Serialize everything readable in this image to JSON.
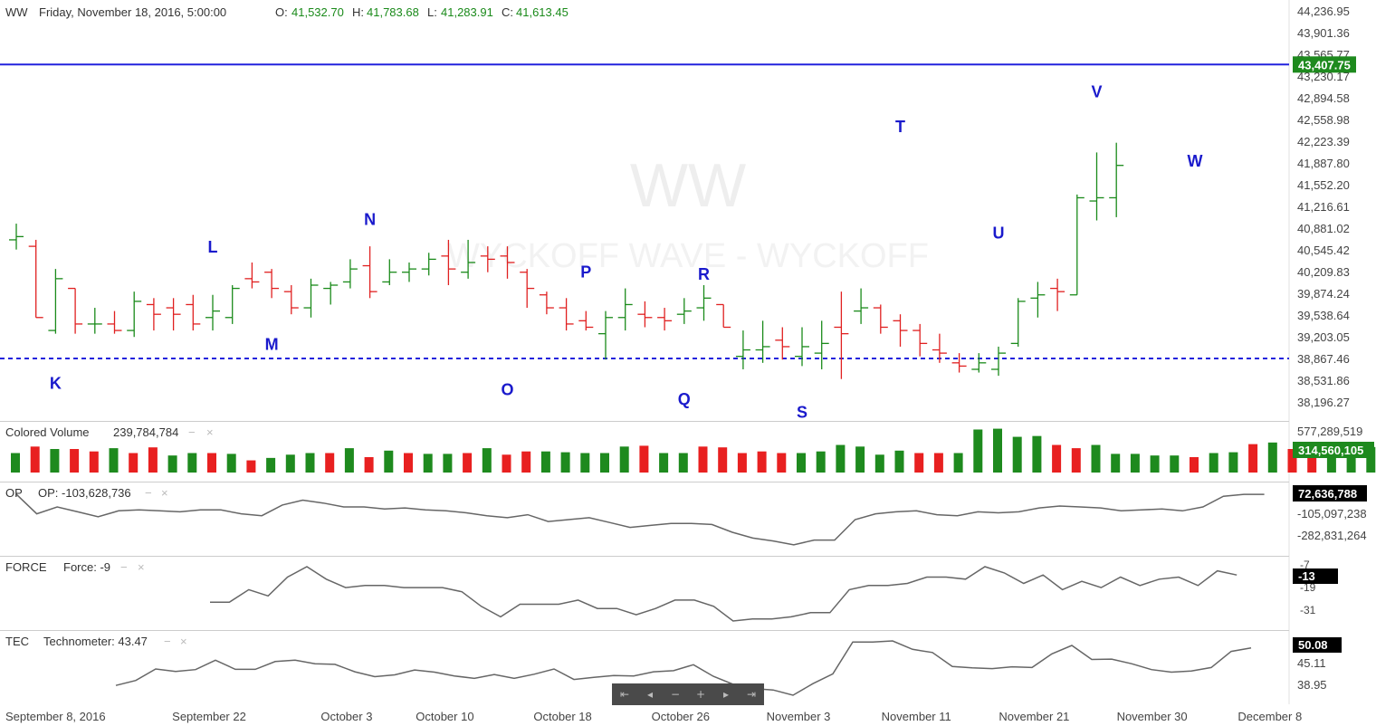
{
  "header": {
    "symbol": "WW",
    "datetime": "Friday, November 18, 2016, 5:00:00",
    "o_label": "O:",
    "o_value": "41,532.70",
    "h_label": "H:",
    "h_value": "41,783.68",
    "l_label": "L:",
    "l_value": "41,283.91",
    "c_label": "C:",
    "c_value": "41,613.45"
  },
  "watermark": {
    "big": "WW",
    "sub": "WYCKOFF WAVE - WYCKOFF"
  },
  "colors": {
    "up": "#1a8a1a",
    "down": "#e02020",
    "vol_up": "#1e8a1e",
    "vol_down": "#e82020",
    "level_line": "#2222dd",
    "wave_label": "#1a1acc",
    "indicator_line": "#666666",
    "green_tag": "#1e8a1e",
    "black_tag": "#000000"
  },
  "chart_data": [
    {
      "type": "ohlc",
      "name": "WW",
      "price_axis_ticks": [
        44236.95,
        43901.36,
        43565.77,
        43230.17,
        42894.58,
        42558.98,
        42223.39,
        41887.8,
        41552.2,
        41216.61,
        40881.02,
        40545.42,
        40209.83,
        39874.24,
        39538.64,
        39203.05,
        38867.46,
        38531.86,
        38196.27
      ],
      "price_axis_labels": [
        "44,236.95",
        "43,901.36",
        "43,565.77",
        "43,230.17",
        "42,894.58",
        "42,558.98",
        "42,223.39",
        "41,887.80",
        "41,552.20",
        "41,216.61",
        "40,881.02",
        "40,545.42",
        "40,209.83",
        "39,874.24",
        "39,538.64",
        "39,203.05",
        "38,867.46",
        "38,531.86",
        "38,196.27"
      ],
      "last_price_label": "43,407.75",
      "resistance_level": 43407.75,
      "support_level": 38867.46,
      "x_axis_labels": [
        "September 8, 2016",
        "September 22",
        "October 3",
        "October 10",
        "October 18",
        "October 26",
        "November 3",
        "November 11",
        "November 21",
        "November 30",
        "December 8"
      ],
      "x_axis_label_bar_index": [
        4,
        10,
        17,
        22,
        28,
        34,
        40,
        46,
        52,
        58,
        64
      ],
      "bars": [
        {
          "o": 40700,
          "h": 40950,
          "l": 40550,
          "c": 40750
        },
        {
          "o": 40600,
          "h": 40700,
          "l": 39500,
          "c": 39500
        },
        {
          "o": 39300,
          "h": 40250,
          "l": 39250,
          "c": 40100
        },
        {
          "o": 39950,
          "h": 39950,
          "l": 39250,
          "c": 39400
        },
        {
          "o": 39400,
          "h": 39650,
          "l": 39250,
          "c": 39400
        },
        {
          "o": 39400,
          "h": 39600,
          "l": 39250,
          "c": 39300
        },
        {
          "o": 39300,
          "h": 39900,
          "l": 39200,
          "c": 39750
        },
        {
          "o": 39700,
          "h": 39800,
          "l": 39300,
          "c": 39550
        },
        {
          "o": 39650,
          "h": 39800,
          "l": 39300,
          "c": 39550
        },
        {
          "o": 39700,
          "h": 39850,
          "l": 39300,
          "c": 39400
        },
        {
          "o": 39500,
          "h": 39850,
          "l": 39300,
          "c": 39600
        },
        {
          "o": 39500,
          "h": 40000,
          "l": 39400,
          "c": 39950
        },
        {
          "o": 40100,
          "h": 40350,
          "l": 39950,
          "c": 40050
        },
        {
          "o": 40200,
          "h": 40250,
          "l": 39800,
          "c": 39950
        },
        {
          "o": 39900,
          "h": 40000,
          "l": 39550,
          "c": 39650
        },
        {
          "o": 39650,
          "h": 40100,
          "l": 39500,
          "c": 40000
        },
        {
          "o": 39950,
          "h": 40050,
          "l": 39700,
          "c": 40000
        },
        {
          "o": 40050,
          "h": 40400,
          "l": 39950,
          "c": 40250
        },
        {
          "o": 40300,
          "h": 40600,
          "l": 39800,
          "c": 39900
        },
        {
          "o": 40050,
          "h": 40400,
          "l": 40000,
          "c": 40200
        },
        {
          "o": 40200,
          "h": 40350,
          "l": 40050,
          "c": 40250
        },
        {
          "o": 40250,
          "h": 40500,
          "l": 40150,
          "c": 40400
        },
        {
          "o": 40450,
          "h": 40700,
          "l": 40000,
          "c": 40250
        },
        {
          "o": 40200,
          "h": 40700,
          "l": 40100,
          "c": 40350
        },
        {
          "o": 40450,
          "h": 40600,
          "l": 40200,
          "c": 40400
        },
        {
          "o": 40450,
          "h": 40600,
          "l": 40100,
          "c": 40350
        },
        {
          "o": 40200,
          "h": 40250,
          "l": 39650,
          "c": 39950
        },
        {
          "o": 39850,
          "h": 39900,
          "l": 39550,
          "c": 39650
        },
        {
          "o": 39650,
          "h": 39800,
          "l": 39300,
          "c": 39400
        },
        {
          "o": 39450,
          "h": 39600,
          "l": 39300,
          "c": 39350
        },
        {
          "o": 39250,
          "h": 39600,
          "l": 38850,
          "c": 39500
        },
        {
          "o": 39500,
          "h": 39950,
          "l": 39300,
          "c": 39700
        },
        {
          "o": 39550,
          "h": 39750,
          "l": 39350,
          "c": 39500
        },
        {
          "o": 39500,
          "h": 39650,
          "l": 39300,
          "c": 39450
        },
        {
          "o": 39550,
          "h": 39800,
          "l": 39400,
          "c": 39600
        },
        {
          "o": 39650,
          "h": 40000,
          "l": 39450,
          "c": 39800
        },
        {
          "o": 39700,
          "h": 39700,
          "l": 39350,
          "c": 39350
        },
        {
          "o": 38900,
          "h": 39300,
          "l": 38700,
          "c": 39000
        },
        {
          "o": 39000,
          "h": 39450,
          "l": 38800,
          "c": 39050
        },
        {
          "o": 39150,
          "h": 39350,
          "l": 38850,
          "c": 39050
        },
        {
          "o": 38900,
          "h": 39350,
          "l": 38750,
          "c": 39050
        },
        {
          "o": 38950,
          "h": 39450,
          "l": 38700,
          "c": 39100
        },
        {
          "o": 39350,
          "h": 39900,
          "l": 38550,
          "c": 39250
        },
        {
          "o": 39600,
          "h": 39950,
          "l": 39400,
          "c": 39650
        },
        {
          "o": 39650,
          "h": 39700,
          "l": 39250,
          "c": 39350
        },
        {
          "o": 39450,
          "h": 39550,
          "l": 39050,
          "c": 39300
        },
        {
          "o": 39300,
          "h": 39400,
          "l": 38900,
          "c": 39100
        },
        {
          "o": 39000,
          "h": 39250,
          "l": 38800,
          "c": 38950
        },
        {
          "o": 38800,
          "h": 38950,
          "l": 38650,
          "c": 38750
        },
        {
          "o": 38700,
          "h": 38950,
          "l": 38650,
          "c": 38800
        },
        {
          "o": 38700,
          "h": 39050,
          "l": 38600,
          "c": 38950
        },
        {
          "o": 39100,
          "h": 39800,
          "l": 39050,
          "c": 39750
        },
        {
          "o": 39800,
          "h": 40050,
          "l": 39500,
          "c": 39850
        },
        {
          "o": 39950,
          "h": 40100,
          "l": 39600,
          "c": 39900
        },
        {
          "o": 39850,
          "h": 41400,
          "l": 39850,
          "c": 41350
        },
        {
          "o": 41300,
          "h": 42050,
          "l": 41000,
          "c": 41350
        },
        {
          "o": 41350,
          "h": 42200,
          "l": 41050,
          "c": 41850
        }
      ]
    },
    {
      "type": "bar",
      "name": "Colored Volume",
      "label": "Colored Volume",
      "value_label": "239,784,784",
      "top_tick": "577,289,519",
      "last_label": "314,560,105",
      "scale_max": 577289519,
      "values": [
        240,
        320,
        290,
        290,
        260,
        300,
        240,
        310,
        210,
        240,
        240,
        230,
        150,
        180,
        220,
        240,
        240,
        300,
        190,
        270,
        240,
        230,
        230,
        240,
        300,
        220,
        260,
        260,
        250,
        240,
        240,
        320,
        330,
        240,
        240,
        320,
        310,
        240,
        260,
        240,
        240,
        260,
        340,
        320,
        220,
        270,
        240,
        240,
        240,
        530,
        540,
        440,
        450,
        340,
        300,
        340,
        230,
        230,
        210,
        210,
        190,
        240,
        250,
        350,
        370,
        290,
        290,
        240,
        330,
        314.56
      ],
      "up": [
        1,
        0,
        1,
        0,
        0,
        1,
        0,
        0,
        1,
        1,
        0,
        1,
        0,
        1,
        1,
        1,
        0,
        1,
        0,
        1,
        0,
        1,
        1,
        0,
        1,
        0,
        0,
        1,
        1,
        1,
        1,
        1,
        0,
        1,
        1,
        0,
        0,
        0,
        0,
        0,
        1,
        1,
        1,
        1,
        1,
        1,
        0,
        0,
        1,
        1,
        1,
        1,
        1,
        0,
        0,
        1,
        1,
        1,
        1,
        1,
        0,
        1,
        1,
        0,
        1,
        0,
        0,
        1,
        1,
        1
      ]
    },
    {
      "type": "line",
      "name": "OP",
      "label": "OP",
      "value_label": "OP: -103,628,736",
      "tick_labels": [
        "-105,097,238",
        "-282,831,264"
      ],
      "last_label": "72,636,788",
      "values": [
        72,
        -130,
        -60,
        -110,
        -160,
        -100,
        -90,
        -100,
        -110,
        -90,
        -90,
        -130,
        -150,
        -40,
        10,
        -20,
        -60,
        -60,
        -80,
        -70,
        -90,
        -100,
        -120,
        -150,
        -170,
        -140,
        -210,
        -190,
        -170,
        -220,
        -270,
        -250,
        -230,
        -230,
        -240,
        -320,
        -380,
        -410,
        -450,
        -400,
        -400,
        -190,
        -130,
        -110,
        -100,
        -140,
        -150,
        -110,
        -120,
        -110,
        -70,
        -50,
        -60,
        -70,
        -100,
        -90,
        -80,
        -100,
        -60,
        50,
        70,
        70
      ]
    },
    {
      "type": "line",
      "name": "FORCE",
      "label": "FORCE",
      "value_label": "Force: -9",
      "tick_labels": [
        "-7",
        "-19",
        "-31"
      ],
      "last_label": "-13",
      "start_index": 10,
      "values": [
        -26,
        -26,
        -20,
        -23,
        -14,
        -9,
        -15,
        -19,
        -18,
        -18,
        -19,
        -19,
        -19,
        -21,
        -28,
        -33,
        -27,
        -27,
        -27,
        -25,
        -29,
        -29,
        -32,
        -29,
        -25,
        -25,
        -28,
        -35,
        -34,
        -34,
        -33,
        -31,
        -31,
        -20,
        -18,
        -18,
        -17,
        -14,
        -14,
        -15,
        -9,
        -12,
        -17,
        -13,
        -20,
        -16,
        -19,
        -14,
        -18,
        -15,
        -14,
        -18,
        -11,
        -13
      ]
    },
    {
      "type": "line",
      "name": "TEC",
      "label": "TEC",
      "value_label": "Technometer: 43.47",
      "tick_labels": [
        "45.11",
        "38.95"
      ],
      "last_label": "50.08",
      "start_index": 5,
      "values": [
        38.8,
        40.2,
        43.5,
        42.8,
        43.3,
        46,
        43.4,
        43.4,
        45.6,
        46,
        45,
        44.8,
        42.7,
        41.3,
        41.8,
        43.2,
        42.6,
        41.5,
        40.8,
        41.9,
        40.8,
        42,
        43.5,
        40.5,
        41.1,
        41.6,
        41.5,
        42.7,
        43,
        44.7,
        41.4,
        39.1,
        37.9,
        37.5,
        36,
        39.3,
        42.1,
        51.2,
        51.2,
        51.5,
        49.1,
        48.2,
        44.2,
        43.8,
        43.6,
        44.1,
        43.9,
        47.8,
        50.2,
        46.2,
        46.3,
        45,
        43.3,
        42.6,
        42.9,
        43.9,
        48.5,
        49.5
      ]
    }
  ],
  "wave_labels": [
    {
      "text": "K",
      "bar": 2,
      "pos": "below",
      "price": 38500
    },
    {
      "text": "L",
      "bar": 10,
      "pos": "above",
      "price": 40600
    },
    {
      "text": "M",
      "bar": 13,
      "pos": "below",
      "price": 39100
    },
    {
      "text": "N",
      "bar": 18,
      "pos": "above",
      "price": 41030
    },
    {
      "text": "O",
      "bar": 25,
      "pos": "below",
      "price": 38400
    },
    {
      "text": "P",
      "bar": 29,
      "pos": "above",
      "price": 40220
    },
    {
      "text": "Q",
      "bar": 34,
      "pos": "below",
      "price": 38250
    },
    {
      "text": "R",
      "bar": 35,
      "pos": "above",
      "price": 40180
    },
    {
      "text": "S",
      "bar": 40,
      "pos": "below",
      "price": 38050
    },
    {
      "text": "T",
      "bar": 45,
      "pos": "above",
      "price": 42460
    },
    {
      "text": "U",
      "bar": 50,
      "pos": "below",
      "price": 40820
    },
    {
      "text": "V",
      "bar": 55,
      "pos": "above",
      "price": 43000
    },
    {
      "text": "W",
      "bar": 60,
      "pos": "below",
      "price": 41930
    }
  ],
  "panel_close_icon": "×",
  "panel_minimize_icon": "−",
  "nav_buttons": [
    {
      "name": "nav-first-icon",
      "glyph": "⇤"
    },
    {
      "name": "nav-prev-icon",
      "glyph": "◂"
    },
    {
      "name": "nav-zoom-out-icon",
      "glyph": "−"
    },
    {
      "name": "nav-zoom-in-icon",
      "glyph": "+"
    },
    {
      "name": "nav-next-icon",
      "glyph": "▸"
    },
    {
      "name": "nav-last-icon",
      "glyph": "⇥"
    }
  ]
}
